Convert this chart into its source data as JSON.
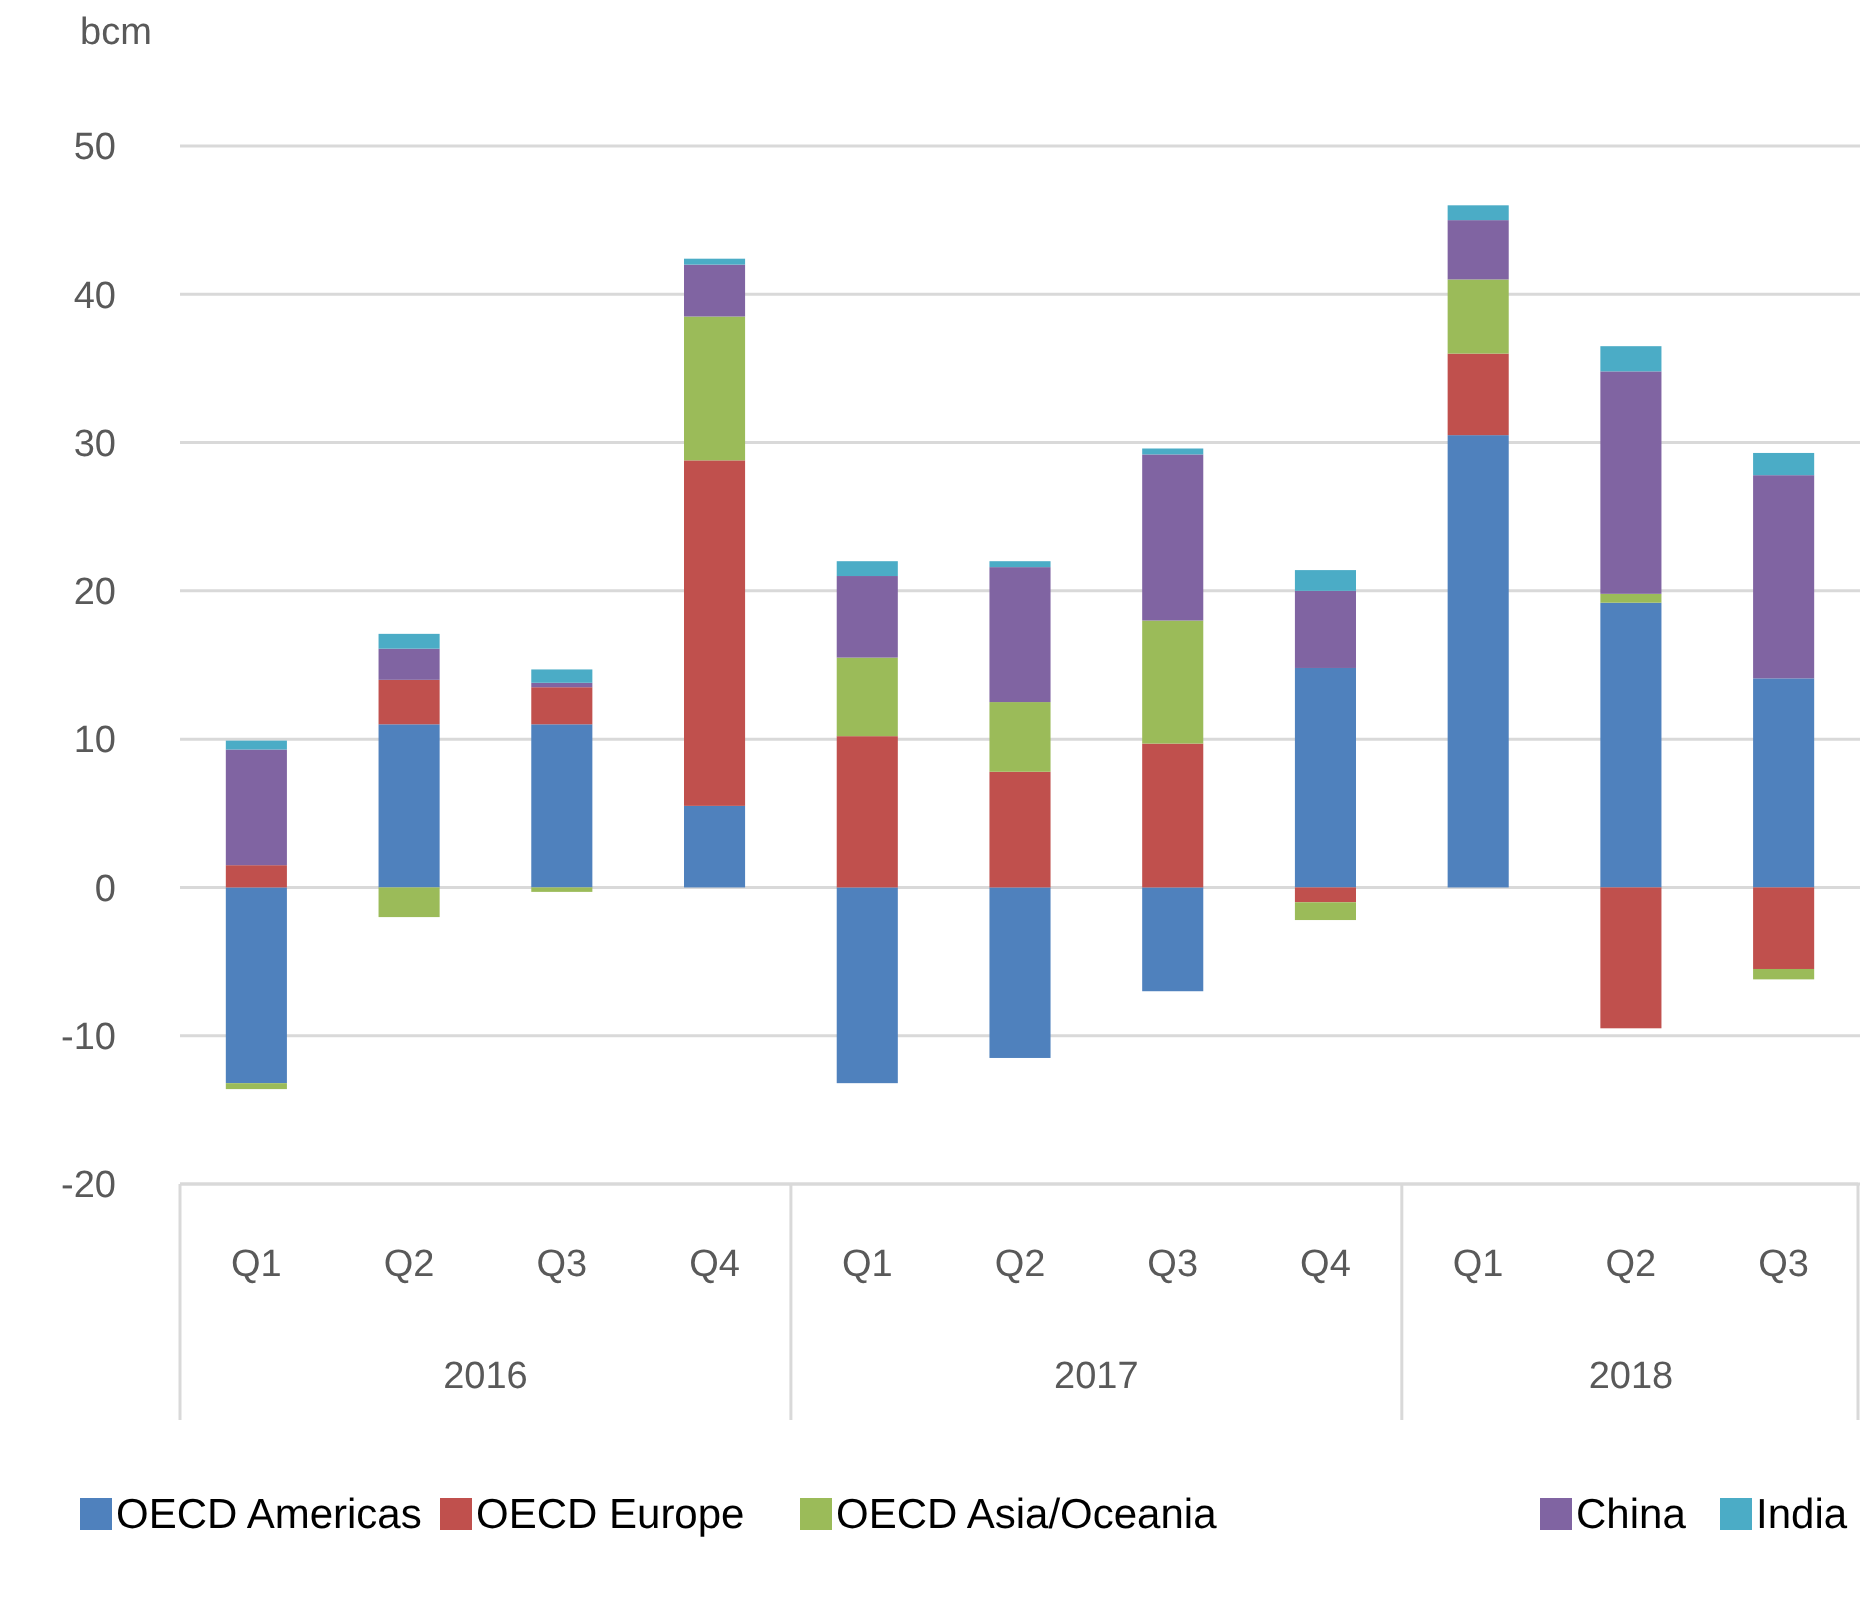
{
  "chart_data": {
    "type": "bar",
    "stacked": true,
    "ylabel": "bcm",
    "categories": [
      "Q1",
      "Q2",
      "Q3",
      "Q4",
      "Q1",
      "Q2",
      "Q3",
      "Q4",
      "Q1",
      "Q2",
      "Q3"
    ],
    "annotations": [
      "2016",
      "2017",
      "2018"
    ],
    "series": [
      {
        "name": "OECD Americas",
        "color": "#4f81bd",
        "values": [
          -13.2,
          11,
          11,
          5.5,
          -13.2,
          -11.5,
          -7,
          14.8,
          30.5,
          19.2,
          14.1
        ]
      },
      {
        "name": "OECD Europe",
        "color": "#c0504d",
        "values": [
          1.5,
          3,
          2.5,
          23.3,
          10.2,
          7.8,
          9.7,
          -1,
          5.5,
          -9.5,
          -5.5
        ]
      },
      {
        "name": "OECD Asia/Oceania",
        "color": "#9bbb59",
        "values": [
          -0.4,
          -2,
          -0.3,
          9.7,
          5.3,
          4.7,
          8.3,
          -1.2,
          5,
          0.6,
          -0.7
        ]
      },
      {
        "name": "China",
        "color": "#8064a2",
        "values": [
          7.8,
          2.1,
          0.3,
          3.5,
          5.5,
          9.1,
          11.2,
          5.2,
          4,
          15,
          13.7
        ]
      },
      {
        "name": "India",
        "color": "#4bacc6",
        "values": [
          0.6,
          1,
          0.9,
          0.4,
          1,
          0.4,
          0.4,
          1.4,
          1,
          1.7,
          1.5
        ]
      }
    ],
    "ylim": [
      -20,
      50
    ],
    "yticks": [
      -20,
      -10,
      0,
      10,
      20,
      30,
      40,
      50
    ],
    "grid": "y",
    "legend": "bottom"
  }
}
